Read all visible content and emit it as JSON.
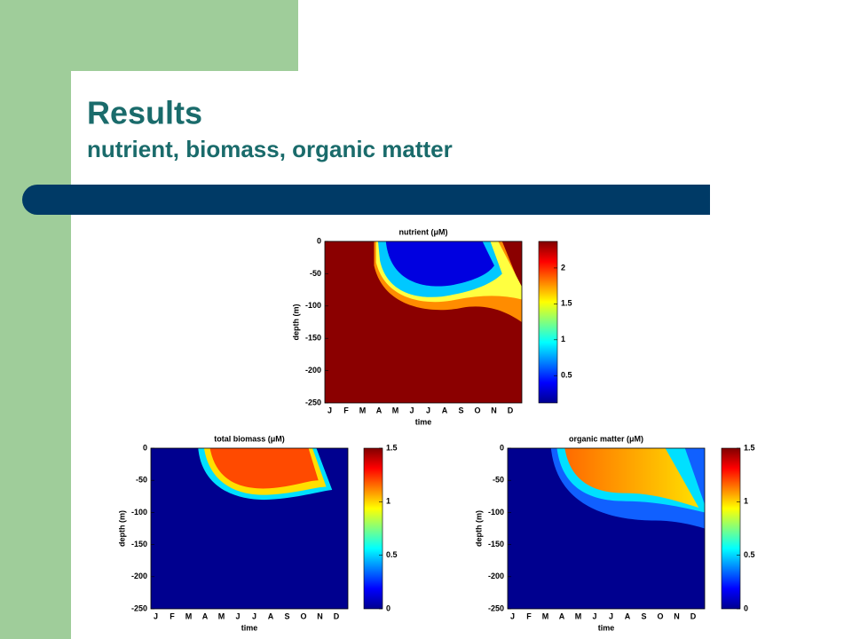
{
  "header": {
    "title": "Results",
    "subtitle": "nutrient, biomass, organic matter"
  },
  "chart_data": [
    {
      "type": "heatmap",
      "title": "nutrient (μM)",
      "x_label": "time",
      "y_label": "depth (m)",
      "categories": [
        "J",
        "F",
        "M",
        "A",
        "M",
        "J",
        "J",
        "A",
        "S",
        "O",
        "N",
        "D"
      ],
      "ylim": [
        -250,
        0
      ],
      "yticks": [
        0,
        -50,
        -100,
        -150,
        -200,
        -250
      ],
      "colorbar": {
        "lim": [
          0.12,
          2.37
        ],
        "ticks": [
          0.5,
          1,
          1.5,
          2
        ]
      }
    },
    {
      "type": "heatmap",
      "title": "total biomass (μM)",
      "x_label": "time",
      "y_label": "depth (m)",
      "categories": [
        "J",
        "F",
        "M",
        "A",
        "M",
        "J",
        "J",
        "A",
        "S",
        "O",
        "N",
        "D"
      ],
      "ylim": [
        -250,
        0
      ],
      "yticks": [
        0,
        -50,
        -100,
        -150,
        -200,
        -250
      ],
      "colorbar": {
        "lim": [
          0,
          1.5
        ],
        "ticks": [
          0,
          0.5,
          1,
          1.5
        ]
      }
    },
    {
      "type": "heatmap",
      "title": "organic matter (μM)",
      "x_label": "time",
      "y_label": "depth (m)",
      "categories": [
        "J",
        "F",
        "M",
        "A",
        "M",
        "J",
        "J",
        "A",
        "S",
        "O",
        "N",
        "D"
      ],
      "ylim": [
        -250,
        0
      ],
      "yticks": [
        0,
        -50,
        -100,
        -150,
        -200,
        -250
      ],
      "colorbar": {
        "lim": [
          0,
          1.5
        ],
        "ticks": [
          0,
          0.5,
          1,
          1.5
        ]
      }
    }
  ]
}
